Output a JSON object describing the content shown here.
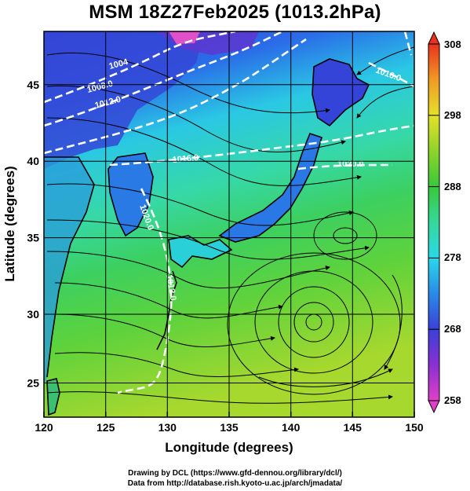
{
  "title": "MSM 18Z27Feb2025 (1013.2hPa)",
  "x_axis": {
    "label": "Longitude (degrees)",
    "range": [
      120,
      150
    ],
    "ticks": [
      "120",
      "125",
      "130",
      "135",
      "140",
      "145",
      "150"
    ]
  },
  "y_axis": {
    "label": "Latitude  (degrees)",
    "range": [
      22.4,
      47.6
    ],
    "ticks": [
      "25",
      "30",
      "35",
      "40",
      "45"
    ]
  },
  "colorbar": {
    "range": [
      258,
      308
    ],
    "ticks": [
      "258",
      "268",
      "278",
      "288",
      "298",
      "308"
    ],
    "colors": [
      "#e040c8",
      "#8a30d0",
      "#3a40d8",
      "#2a8ae8",
      "#2ad8e8",
      "#36d89a",
      "#39c83a",
      "#8ed42a",
      "#e6e02a",
      "#f09a24",
      "#e8321e"
    ]
  },
  "contour_labels": [
    "1004",
    "1008.0",
    "1012.0",
    "1016.0",
    "1020.0",
    "1020.0",
    "1012.0",
    "1016.0"
  ],
  "credits": {
    "line1": "Drawing by DCL (https://www.gfd-dennou.org/library/dcl/)",
    "line2": "Data from http://database.rish.kyoto-u.ac.jp/arch/jmadata/"
  }
}
